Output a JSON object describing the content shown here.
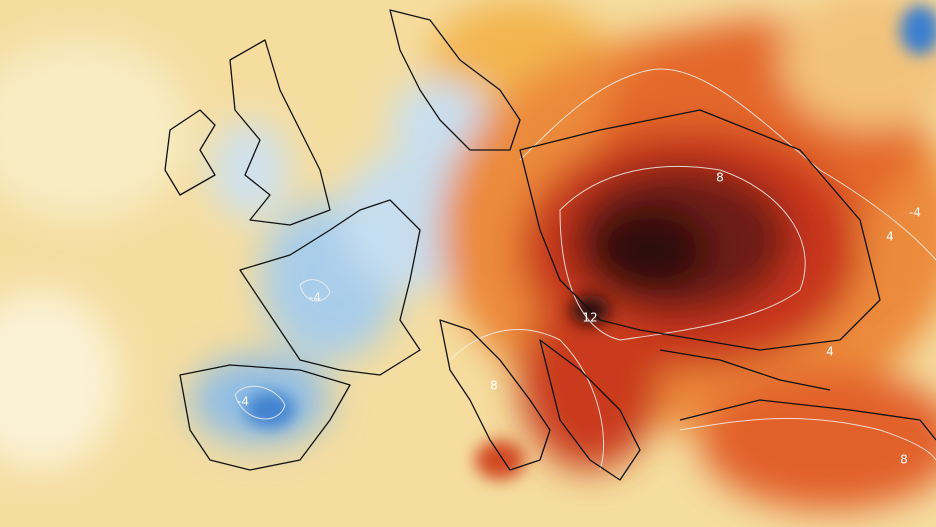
{
  "map": {
    "contour_labels": [
      "-4",
      "-4",
      "4",
      "-4",
      "4",
      "8",
      "8",
      "12",
      "8"
    ]
  }
}
